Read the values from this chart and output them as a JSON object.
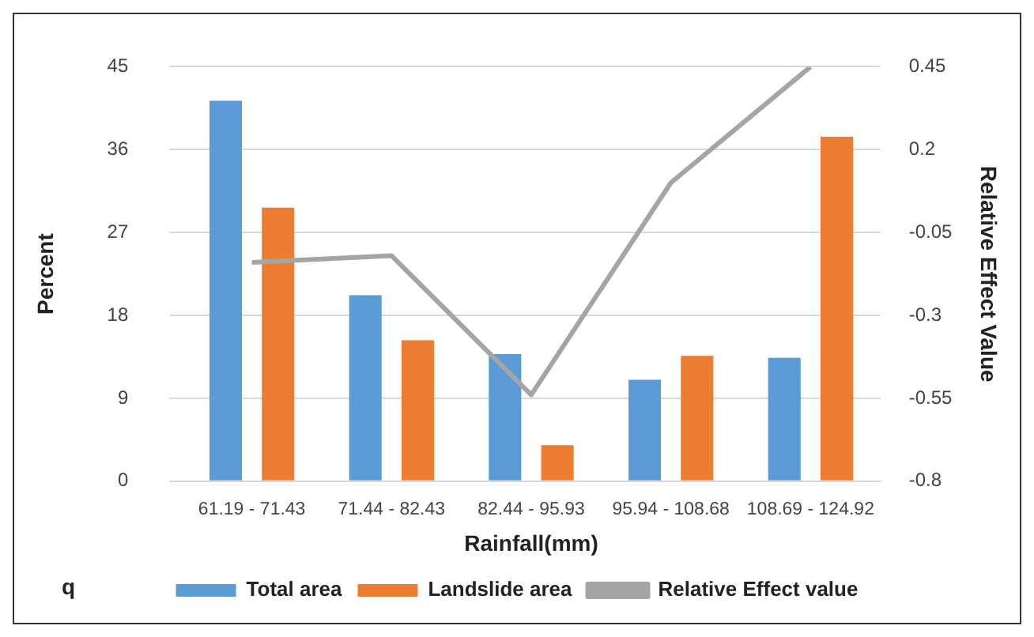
{
  "chart_data": {
    "type": "bar",
    "xlabel": "Rainfall(mm)",
    "ylabel": "Percent",
    "y2label": "Relative Effect Value",
    "categories": [
      "61.19 - 71.43",
      "71.44 - 82.43",
      "82.44 - 95.93",
      "95.94 - 108.68",
      "108.69 - 124.92"
    ],
    "series": [
      {
        "name": "Total area",
        "color": "#5b9bd5",
        "values": [
          41.3,
          20.2,
          13.8,
          11.0,
          13.4
        ]
      },
      {
        "name": "Landslide area",
        "color": "#ed7d31",
        "values": [
          29.7,
          15.3,
          3.9,
          13.6,
          37.4
        ]
      },
      {
        "name": "Relative Effect value",
        "type": "line",
        "axis": "y2",
        "color": "#a5a5a5",
        "values": [
          -0.14,
          -0.12,
          -0.54,
          0.1,
          0.45
        ]
      }
    ],
    "ylim": [
      0,
      45
    ],
    "yticks": [
      0,
      9,
      18,
      27,
      36,
      45
    ],
    "y2lim": [
      -0.8,
      0.45
    ],
    "y2ticks": [
      -0.8,
      -0.55,
      -0.3,
      -0.05,
      0.2,
      0.45
    ],
    "grid": "y",
    "legend": "bottom",
    "marker": "none",
    "annotations": [
      "q"
    ]
  }
}
